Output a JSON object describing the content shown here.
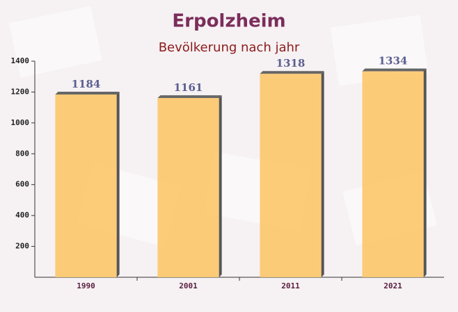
{
  "chart_data": {
    "type": "bar",
    "title": "Erpolzheim",
    "subtitle": "Bevölkerung nach jahr",
    "categories": [
      "1990",
      "2001",
      "2011",
      "2021"
    ],
    "values": [
      1184,
      1161,
      1318,
      1334
    ],
    "color": "#fdc66a",
    "ylim": [
      0,
      1400
    ],
    "yticks": [
      200,
      400,
      600,
      800,
      1000,
      1200,
      1400
    ]
  }
}
